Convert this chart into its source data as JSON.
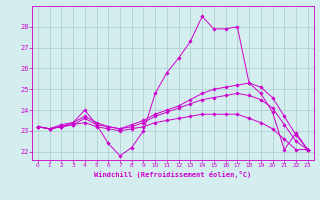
{
  "x": [
    0,
    1,
    2,
    3,
    4,
    5,
    6,
    7,
    8,
    9,
    10,
    11,
    12,
    13,
    14,
    15,
    16,
    17,
    18,
    19,
    20,
    21,
    22,
    23
  ],
  "line1": [
    23.2,
    23.1,
    23.3,
    23.4,
    24.0,
    23.3,
    22.4,
    21.8,
    22.2,
    23.0,
    24.8,
    25.8,
    26.5,
    27.3,
    28.5,
    27.9,
    27.9,
    28.0,
    25.3,
    24.8,
    23.9,
    22.1,
    22.9,
    22.1
  ],
  "line2": [
    23.2,
    23.1,
    23.2,
    23.4,
    23.7,
    23.4,
    23.2,
    23.1,
    23.3,
    23.5,
    23.8,
    24.0,
    24.2,
    24.5,
    24.8,
    25.0,
    25.1,
    25.2,
    25.3,
    25.1,
    24.6,
    23.7,
    22.8,
    22.1
  ],
  "line3": [
    23.2,
    23.1,
    23.2,
    23.3,
    23.6,
    23.3,
    23.2,
    23.1,
    23.2,
    23.4,
    23.7,
    23.9,
    24.1,
    24.3,
    24.5,
    24.6,
    24.7,
    24.8,
    24.7,
    24.5,
    24.1,
    23.3,
    22.5,
    22.1
  ],
  "line4": [
    23.2,
    23.1,
    23.2,
    23.3,
    23.4,
    23.2,
    23.1,
    23.0,
    23.1,
    23.2,
    23.4,
    23.5,
    23.6,
    23.7,
    23.8,
    23.8,
    23.8,
    23.8,
    23.6,
    23.4,
    23.1,
    22.6,
    22.1,
    22.1
  ],
  "line_color": "#cc00cc",
  "bg_color": "#d4eef0",
  "grid_color": "#aacccc",
  "xlabel": "Windchill (Refroidissement éolien,°C)",
  "ylim": [
    21.6,
    29.0
  ],
  "xlim": [
    -0.5,
    23.5
  ],
  "yticks": [
    22,
    23,
    24,
    25,
    26,
    27,
    28
  ],
  "xticks": [
    0,
    1,
    2,
    3,
    4,
    5,
    6,
    7,
    8,
    9,
    10,
    11,
    12,
    13,
    14,
    15,
    16,
    17,
    18,
    19,
    20,
    21,
    22,
    23
  ],
  "xtick_labels": [
    "0",
    "1",
    "2",
    "3",
    "4",
    "5",
    "6",
    "7",
    "8",
    "9",
    "10",
    "11",
    "12",
    "13",
    "14",
    "15",
    "16",
    "17",
    "18",
    "19",
    "20",
    "21",
    "22",
    "23"
  ]
}
